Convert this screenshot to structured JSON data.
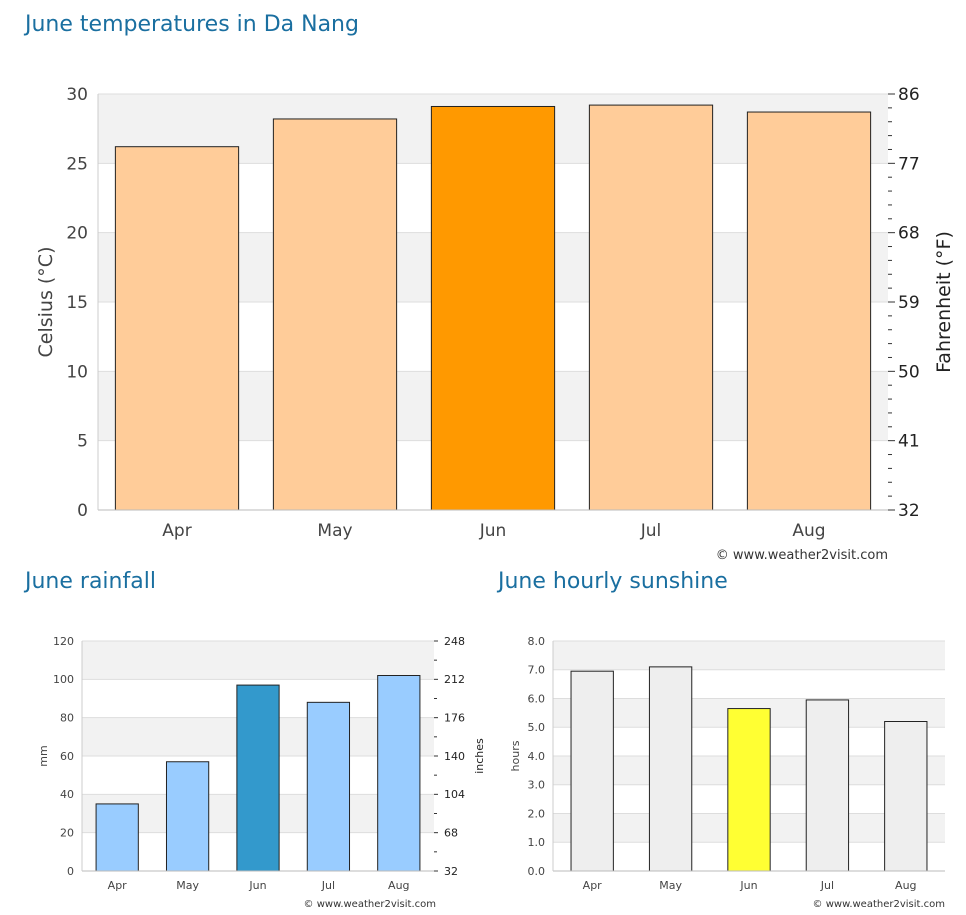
{
  "titles": {
    "temperature": "June temperatures in Da Nang",
    "rainfall": "June rainfall",
    "sunshine": "June hourly sunshine"
  },
  "chart_data": [
    {
      "type": "bar",
      "categories": [
        "Apr",
        "May",
        "Jun",
        "Jul",
        "Aug"
      ],
      "values": [
        26.2,
        28.2,
        29.1,
        29.2,
        28.7
      ],
      "highlight": "Jun",
      "ylabel": "Celsius (°C)",
      "ylabel_right": "Fahrenheit (°F)",
      "ylim": [
        0,
        30
      ],
      "yticks": [
        "0",
        "5",
        "10",
        "15",
        "20",
        "25",
        "30"
      ],
      "yticks_right": [
        "32",
        "41",
        "50",
        "59",
        "68",
        "77",
        "86"
      ],
      "grid": "alternating bands",
      "colors": {
        "bar": "#ffcc99",
        "highlight": "#ff9900",
        "band": "#f2f2f2"
      },
      "credit": "© www.weather2visit.com"
    },
    {
      "type": "bar",
      "categories": [
        "Apr",
        "May",
        "Jun",
        "Jul",
        "Aug"
      ],
      "values": [
        35,
        57,
        97,
        88,
        102
      ],
      "highlight": "Jun",
      "ylabel": "mm",
      "ylabel_right": "inches",
      "ylim": [
        0,
        120
      ],
      "yticks": [
        "0",
        "20",
        "40",
        "60",
        "80",
        "100",
        "120"
      ],
      "yticks_right": [
        "32",
        "68",
        "104",
        "140",
        "176",
        "212",
        "248"
      ],
      "grid": "alternating bands",
      "colors": {
        "bar": "#99ccff",
        "highlight": "#3399cc",
        "band": "#f2f2f2"
      },
      "credit": "© www.weather2visit.com"
    },
    {
      "type": "bar",
      "categories": [
        "Apr",
        "May",
        "Jun",
        "Jul",
        "Aug"
      ],
      "values": [
        6.95,
        7.1,
        5.65,
        5.95,
        5.2
      ],
      "highlight": "Jun",
      "ylabel": "hours",
      "ylim": [
        0,
        8
      ],
      "yticks": [
        "0.0",
        "1.0",
        "2.0",
        "3.0",
        "4.0",
        "5.0",
        "6.0",
        "7.0",
        "8.0"
      ],
      "grid": "alternating bands",
      "colors": {
        "bar": "#eeeeee",
        "highlight": "#ffff33",
        "band": "#f2f2f2"
      },
      "credit": "© www.weather2visit.com"
    }
  ]
}
